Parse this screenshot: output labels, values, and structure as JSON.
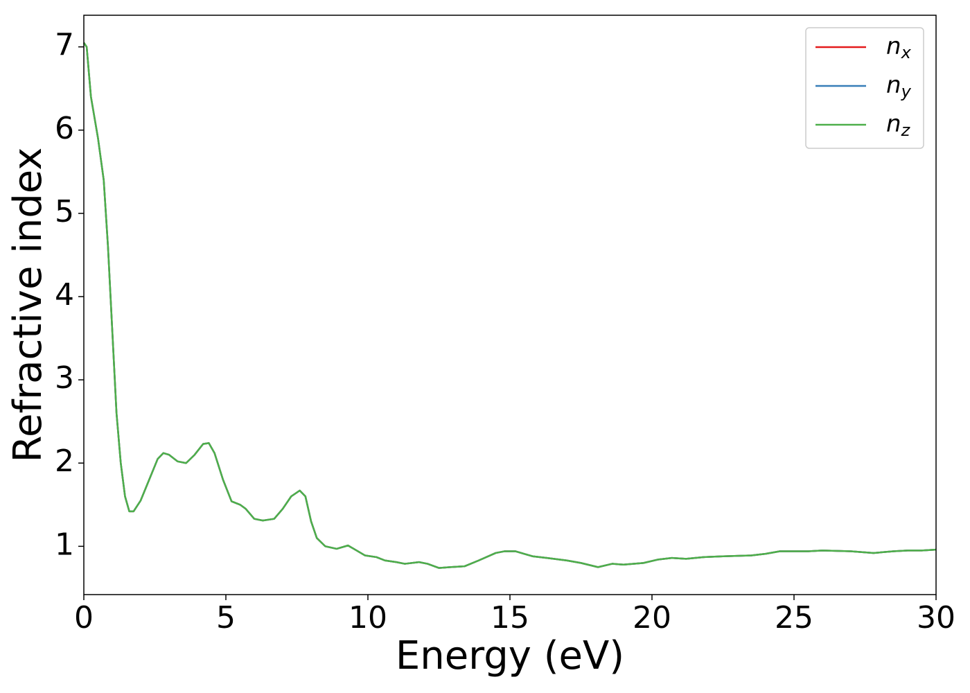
{
  "chart_data": {
    "type": "line",
    "xlabel": "Energy (eV)",
    "ylabel": "Refractive index",
    "x": [
      0,
      0.1,
      0.25,
      0.5,
      0.7,
      0.85,
      1.0,
      1.15,
      1.3,
      1.45,
      1.6,
      1.75,
      2.0,
      2.3,
      2.6,
      2.8,
      3.0,
      3.3,
      3.6,
      3.9,
      4.2,
      4.4,
      4.6,
      4.9,
      5.2,
      5.5,
      5.7,
      6.0,
      6.3,
      6.7,
      7.0,
      7.3,
      7.6,
      7.8,
      8.0,
      8.2,
      8.5,
      8.9,
      9.3,
      9.6,
      9.9,
      10.3,
      10.6,
      11,
      11.3,
      11.8,
      12.1,
      12.5,
      12.9,
      13.4,
      13.9,
      14.5,
      14.8,
      15.2,
      15.5,
      15.8,
      16.3,
      17,
      17.5,
      18.1,
      18.6,
      19,
      19.7,
      20.2,
      20.7,
      21.2,
      21.8,
      22.5,
      23.5,
      24,
      24.5,
      25.5,
      26,
      27,
      27.8,
      28.5,
      29,
      29.5,
      30
    ],
    "series": [
      {
        "name": "n",
        "subscript": "x",
        "color": "#e41a1c",
        "values": [
          7.05,
          7.0,
          6.4,
          5.9,
          5.4,
          4.6,
          3.6,
          2.6,
          2.0,
          1.6,
          1.42,
          1.42,
          1.55,
          1.8,
          2.05,
          2.12,
          2.1,
          2.02,
          2.0,
          2.1,
          2.23,
          2.24,
          2.12,
          1.8,
          1.54,
          1.5,
          1.45,
          1.33,
          1.31,
          1.33,
          1.45,
          1.6,
          1.67,
          1.6,
          1.3,
          1.1,
          1.0,
          0.97,
          1.01,
          0.95,
          0.89,
          0.87,
          0.83,
          0.81,
          0.79,
          0.81,
          0.79,
          0.74,
          0.75,
          0.76,
          0.83,
          0.92,
          0.94,
          0.94,
          0.91,
          0.88,
          0.86,
          0.83,
          0.8,
          0.75,
          0.79,
          0.78,
          0.8,
          0.84,
          0.86,
          0.85,
          0.87,
          0.88,
          0.89,
          0.91,
          0.94,
          0.94,
          0.95,
          0.94,
          0.92,
          0.94,
          0.95,
          0.95,
          0.96
        ]
      },
      {
        "name": "n",
        "subscript": "y",
        "color": "#377eb8",
        "values": [
          7.05,
          7.0,
          6.4,
          5.9,
          5.4,
          4.6,
          3.6,
          2.6,
          2.0,
          1.6,
          1.42,
          1.42,
          1.55,
          1.8,
          2.05,
          2.12,
          2.1,
          2.02,
          2.0,
          2.1,
          2.23,
          2.24,
          2.12,
          1.8,
          1.54,
          1.5,
          1.45,
          1.33,
          1.31,
          1.33,
          1.45,
          1.6,
          1.67,
          1.6,
          1.3,
          1.1,
          1.0,
          0.97,
          1.01,
          0.95,
          0.89,
          0.87,
          0.83,
          0.81,
          0.79,
          0.81,
          0.79,
          0.74,
          0.75,
          0.76,
          0.83,
          0.92,
          0.94,
          0.94,
          0.91,
          0.88,
          0.86,
          0.83,
          0.8,
          0.75,
          0.79,
          0.78,
          0.8,
          0.84,
          0.86,
          0.85,
          0.87,
          0.88,
          0.89,
          0.91,
          0.94,
          0.94,
          0.95,
          0.94,
          0.92,
          0.94,
          0.95,
          0.95,
          0.96
        ]
      },
      {
        "name": "n",
        "subscript": "z",
        "color": "#4daf4a",
        "values": [
          7.05,
          7.0,
          6.4,
          5.9,
          5.4,
          4.6,
          3.6,
          2.6,
          2.0,
          1.6,
          1.42,
          1.42,
          1.55,
          1.8,
          2.05,
          2.12,
          2.1,
          2.02,
          2.0,
          2.1,
          2.23,
          2.24,
          2.12,
          1.8,
          1.54,
          1.5,
          1.45,
          1.33,
          1.31,
          1.33,
          1.45,
          1.6,
          1.67,
          1.6,
          1.3,
          1.1,
          1.0,
          0.97,
          1.01,
          0.95,
          0.89,
          0.87,
          0.83,
          0.81,
          0.79,
          0.81,
          0.79,
          0.74,
          0.75,
          0.76,
          0.83,
          0.92,
          0.94,
          0.94,
          0.91,
          0.88,
          0.86,
          0.83,
          0.8,
          0.75,
          0.79,
          0.78,
          0.8,
          0.84,
          0.86,
          0.85,
          0.87,
          0.88,
          0.89,
          0.91,
          0.94,
          0.94,
          0.95,
          0.94,
          0.92,
          0.94,
          0.95,
          0.95,
          0.96
        ]
      }
    ],
    "xlim": [
      0,
      30
    ],
    "xticks": [
      0,
      5,
      10,
      15,
      20,
      25,
      30
    ],
    "ylim": [
      0.42,
      7.38
    ],
    "yticks": [
      1,
      2,
      3,
      4,
      5,
      6,
      7
    ],
    "grid": false,
    "legend": "upper right"
  }
}
